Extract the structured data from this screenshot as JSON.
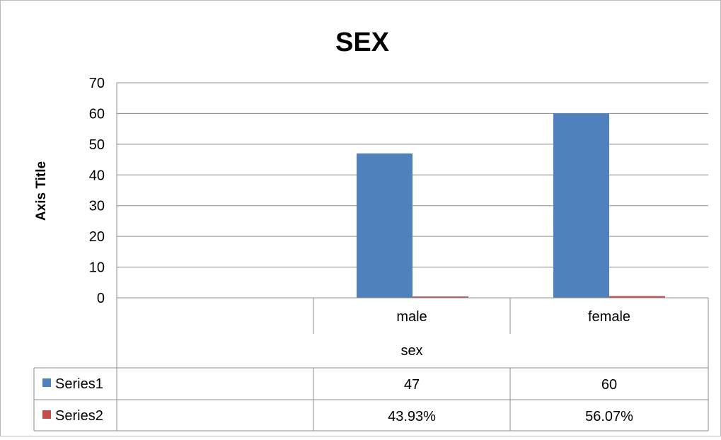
{
  "chart_data": {
    "type": "bar",
    "title": "SEX",
    "ylabel": "Axis Title",
    "xlabel": "sex",
    "ylim": [
      0,
      70
    ],
    "yticks": [
      0,
      10,
      20,
      30,
      40,
      50,
      60,
      70
    ],
    "grid": true,
    "categories": [
      "",
      "male",
      "female"
    ],
    "series": [
      {
        "name": "Series1",
        "values": [
          null,
          47,
          60
        ],
        "labels": [
          "",
          "47",
          "60"
        ],
        "color": "#4f81bd"
      },
      {
        "name": "Series2",
        "values": [
          null,
          0.4393,
          0.5607
        ],
        "labels": [
          "",
          "43.93%",
          "56.07%"
        ],
        "color": "#c0504d"
      }
    ],
    "legend": "data-table"
  }
}
